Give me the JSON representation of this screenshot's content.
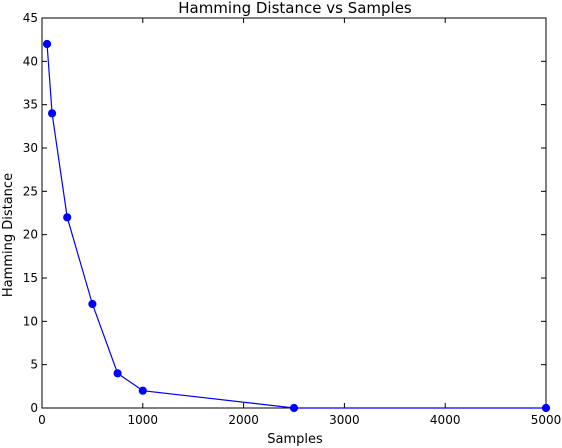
{
  "chart_data": {
    "type": "line",
    "title": "Hamming Distance vs Samples",
    "xlabel": "Samples",
    "ylabel": "Hamming Distance",
    "xlim": [
      0,
      5000
    ],
    "ylim": [
      0,
      45
    ],
    "x_ticks": [
      0,
      1000,
      2000,
      3000,
      4000,
      5000
    ],
    "y_ticks": [
      0,
      5,
      10,
      15,
      20,
      25,
      30,
      35,
      40,
      45
    ],
    "grid": false,
    "series": [
      {
        "color": "#0000ff",
        "marker": "circle",
        "x": [
          50,
          100,
          250,
          500,
          750,
          1000,
          2500,
          5000
        ],
        "y": [
          42,
          34,
          22,
          12,
          4,
          2,
          0,
          0
        ]
      }
    ]
  }
}
